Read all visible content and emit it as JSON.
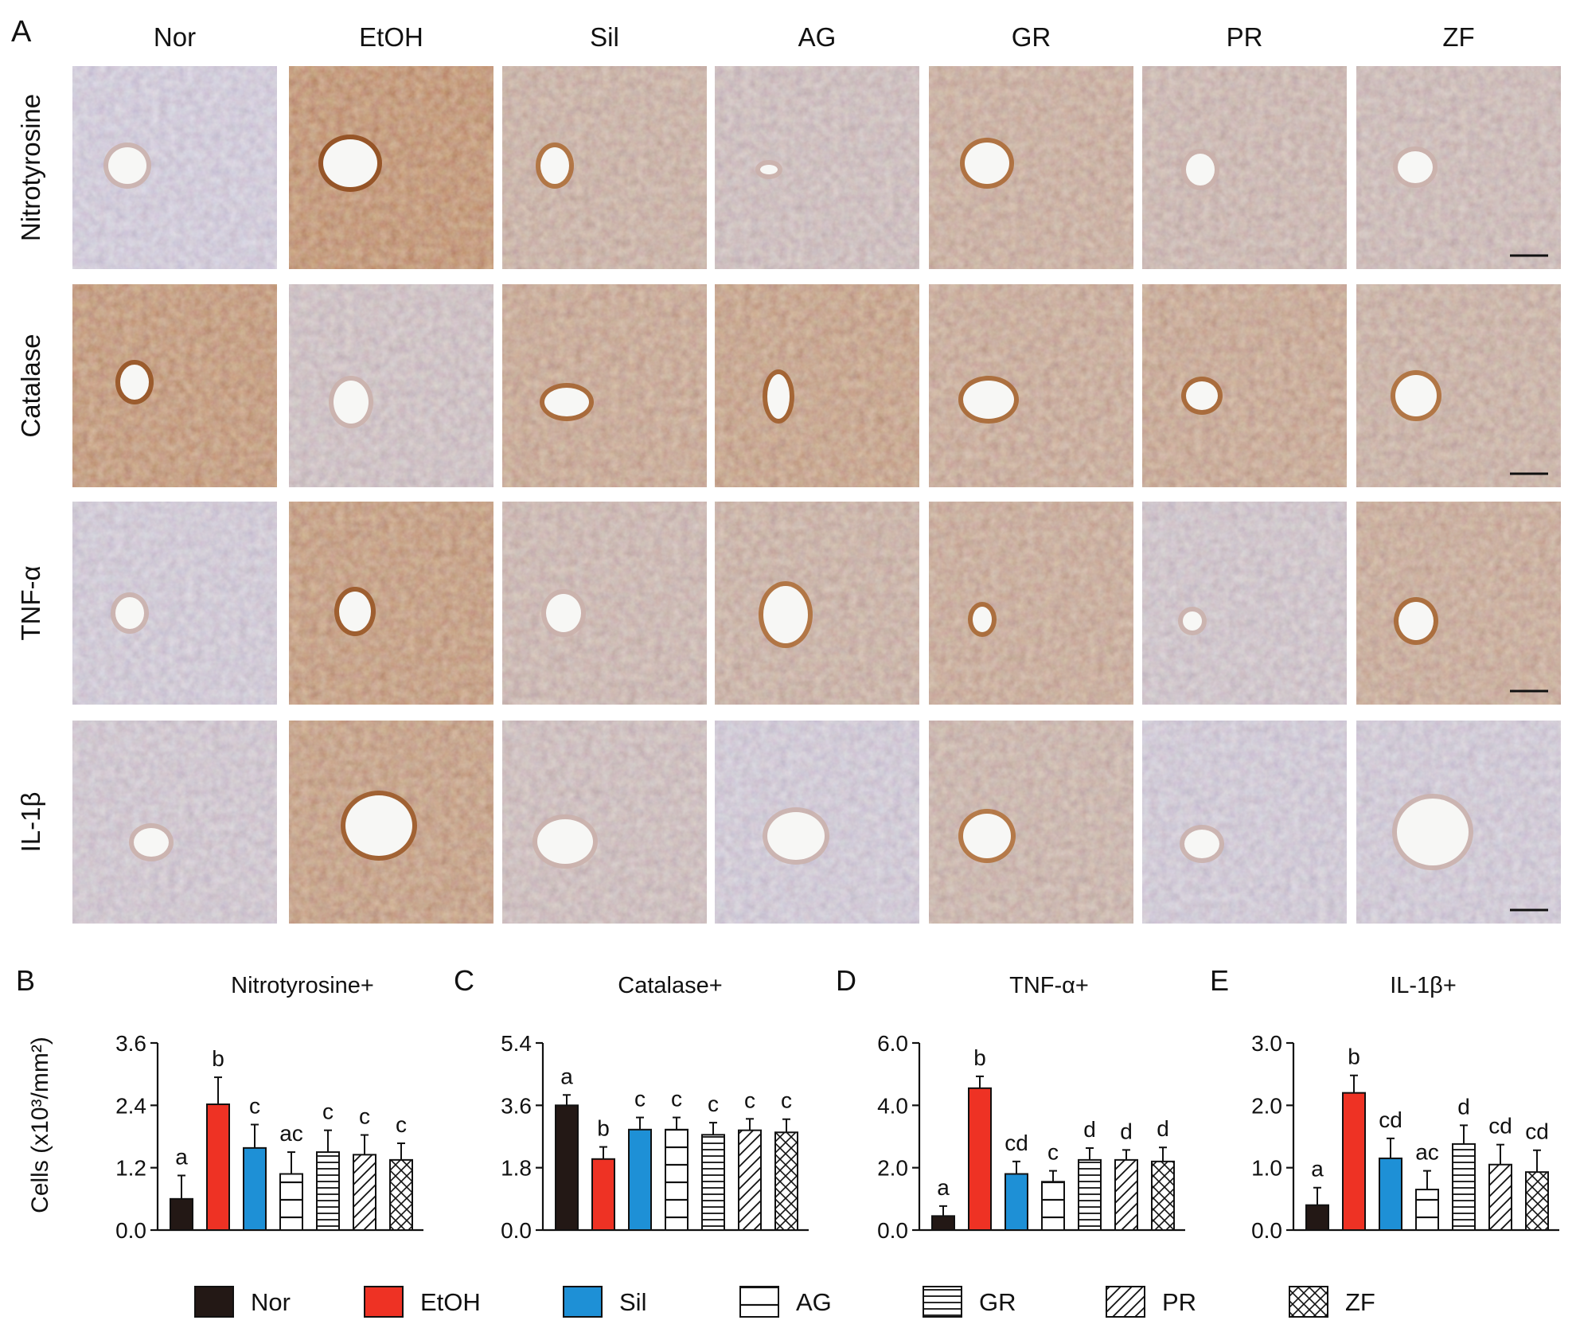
{
  "panel_a": {
    "letter": "A",
    "columns": [
      "Nor",
      "EtOH",
      "Sil",
      "AG",
      "GR",
      "PR",
      "ZF"
    ],
    "rows": [
      "Nitrotyrosine",
      "Catalase",
      "TNF-α",
      "IL-1β"
    ]
  },
  "shared_ylabel": "Cells (x10³/mm²)",
  "legend": [
    {
      "name": "Nor",
      "pattern": "solid-black"
    },
    {
      "name": "EtOH",
      "pattern": "solid-red"
    },
    {
      "name": "Sil",
      "pattern": "solid-blue"
    },
    {
      "name": "AG",
      "pattern": "horizontal-wide"
    },
    {
      "name": "GR",
      "pattern": "horizontal-dense"
    },
    {
      "name": "PR",
      "pattern": "diagonal"
    },
    {
      "name": "ZF",
      "pattern": "crosshatch"
    }
  ],
  "colors": {
    "Nor": "#231815",
    "EtOH": "#ee3224",
    "Sil": "#1e90d6",
    "pattern": "#ffffff",
    "stroke": "#111111"
  },
  "chart_data": [
    {
      "type": "bar",
      "letter": "B",
      "title": "Nitrotyrosine+",
      "categories": [
        "Nor",
        "EtOH",
        "Sil",
        "AG",
        "GR",
        "PR",
        "ZF"
      ],
      "values": [
        0.6,
        2.42,
        1.58,
        1.08,
        1.5,
        1.45,
        1.35
      ],
      "errors": [
        0.45,
        0.52,
        0.45,
        0.42,
        0.42,
        0.38,
        0.32
      ],
      "sig": [
        "a",
        "b",
        "c",
        "ac",
        "c",
        "c",
        "c"
      ],
      "ylim": [
        0,
        3.6
      ],
      "yticks": [
        "0.0",
        "1.2",
        "2.4",
        "3.6"
      ]
    },
    {
      "type": "bar",
      "letter": "C",
      "title": "Catalase+",
      "categories": [
        "Nor",
        "EtOH",
        "Sil",
        "AG",
        "GR",
        "PR",
        "ZF"
      ],
      "values": [
        3.6,
        2.05,
        2.9,
        2.9,
        2.75,
        2.88,
        2.82
      ],
      "errors": [
        0.3,
        0.35,
        0.35,
        0.35,
        0.35,
        0.33,
        0.38
      ],
      "sig": [
        "a",
        "b",
        "c",
        "c",
        "c",
        "c",
        "c"
      ],
      "ylim": [
        0,
        5.4
      ],
      "yticks": [
        "0.0",
        "1.8",
        "3.6",
        "5.4"
      ]
    },
    {
      "type": "bar",
      "letter": "D",
      "title": "TNF-α+",
      "categories": [
        "Nor",
        "EtOH",
        "Sil",
        "AG",
        "GR",
        "PR",
        "ZF"
      ],
      "values": [
        0.45,
        4.55,
        1.8,
        1.55,
        2.25,
        2.25,
        2.2
      ],
      "errors": [
        0.32,
        0.38,
        0.4,
        0.35,
        0.38,
        0.32,
        0.45
      ],
      "sig": [
        "a",
        "b",
        "cd",
        "c",
        "d",
        "d",
        "d"
      ],
      "ylim": [
        0,
        6.0
      ],
      "yticks": [
        "0.0",
        "2.0",
        "4.0",
        "6.0"
      ]
    },
    {
      "type": "bar",
      "letter": "E",
      "title": "IL-1β+",
      "categories": [
        "Nor",
        "EtOH",
        "Sil",
        "AG",
        "GR",
        "PR",
        "ZF"
      ],
      "values": [
        0.4,
        2.2,
        1.15,
        0.65,
        1.38,
        1.05,
        0.93
      ],
      "errors": [
        0.28,
        0.28,
        0.32,
        0.3,
        0.3,
        0.32,
        0.35
      ],
      "sig": [
        "a",
        "b",
        "cd",
        "ac",
        "d",
        "cd",
        "cd"
      ],
      "ylim": [
        0,
        3.0
      ],
      "yticks": [
        "0.0",
        "1.0",
        "2.0",
        "3.0"
      ]
    }
  ]
}
